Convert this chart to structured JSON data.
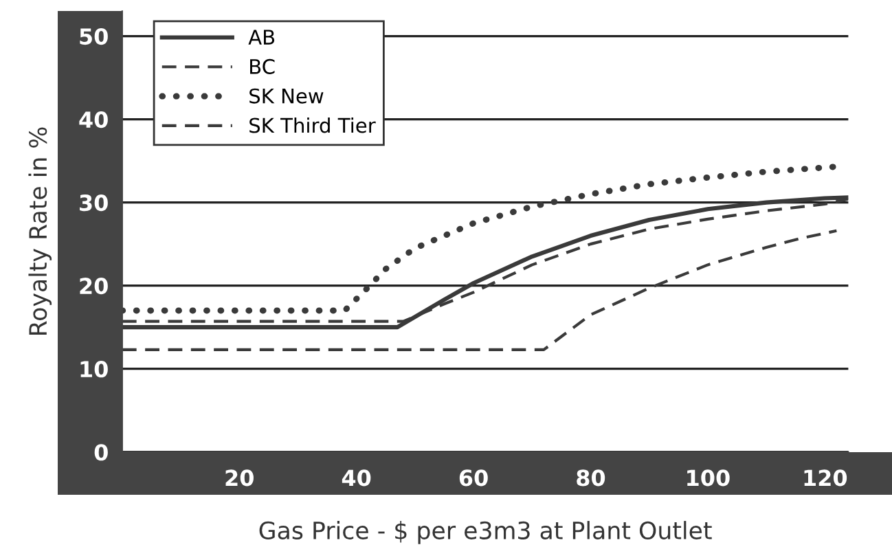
{
  "chart_data": {
    "type": "line",
    "xlabel": "Gas Price - $ per e3m3 at Plant Outlet",
    "ylabel": "Royalty Rate in %",
    "xlim": [
      0,
      124
    ],
    "xticks": [
      20,
      40,
      60,
      80,
      100,
      120
    ],
    "ylim": [
      0,
      53
    ],
    "yticks": [
      0,
      10,
      20,
      30,
      40,
      50
    ],
    "grid": "y",
    "legend": "top left",
    "marker": "none",
    "series": [
      {
        "name": "AB",
        "color": "#3a3a3a",
        "line_style": "solid",
        "x": [
          0,
          47,
          55,
          60,
          70,
          80,
          90,
          100,
          110,
          120,
          124
        ],
        "values": [
          15,
          15,
          18.3,
          20.3,
          23.5,
          26,
          27.9,
          29.2,
          30,
          30.5,
          30.6
        ]
      },
      {
        "name": "BC",
        "color": "#3a3a3a",
        "line_style": "dashed",
        "x": [
          0,
          72,
          80,
          90,
          100,
          110,
          116,
          122
        ],
        "values": [
          12.3,
          12.3,
          16.5,
          19.7,
          22.5,
          24.6,
          25.7,
          26.6
        ]
      },
      {
        "name": "SK New",
        "color": "#3a3a3a",
        "line_style": "dotted",
        "x": [
          0,
          38,
          42,
          45,
          50,
          60,
          70,
          80,
          90,
          100,
          110,
          122
        ],
        "values": [
          17,
          17,
          19.8,
          22,
          24.5,
          27.5,
          29.5,
          31,
          32.2,
          33,
          33.7,
          34.3
        ]
      },
      {
        "name": "SK Third Tier",
        "color": "#3a3a3a",
        "line_style": "dashed",
        "x": [
          0,
          48,
          55,
          60,
          70,
          80,
          90,
          100,
          110,
          120,
          124
        ],
        "values": [
          15.7,
          15.7,
          17.8,
          19.2,
          22.5,
          25,
          26.8,
          28,
          29,
          29.8,
          30.4
        ]
      }
    ]
  }
}
